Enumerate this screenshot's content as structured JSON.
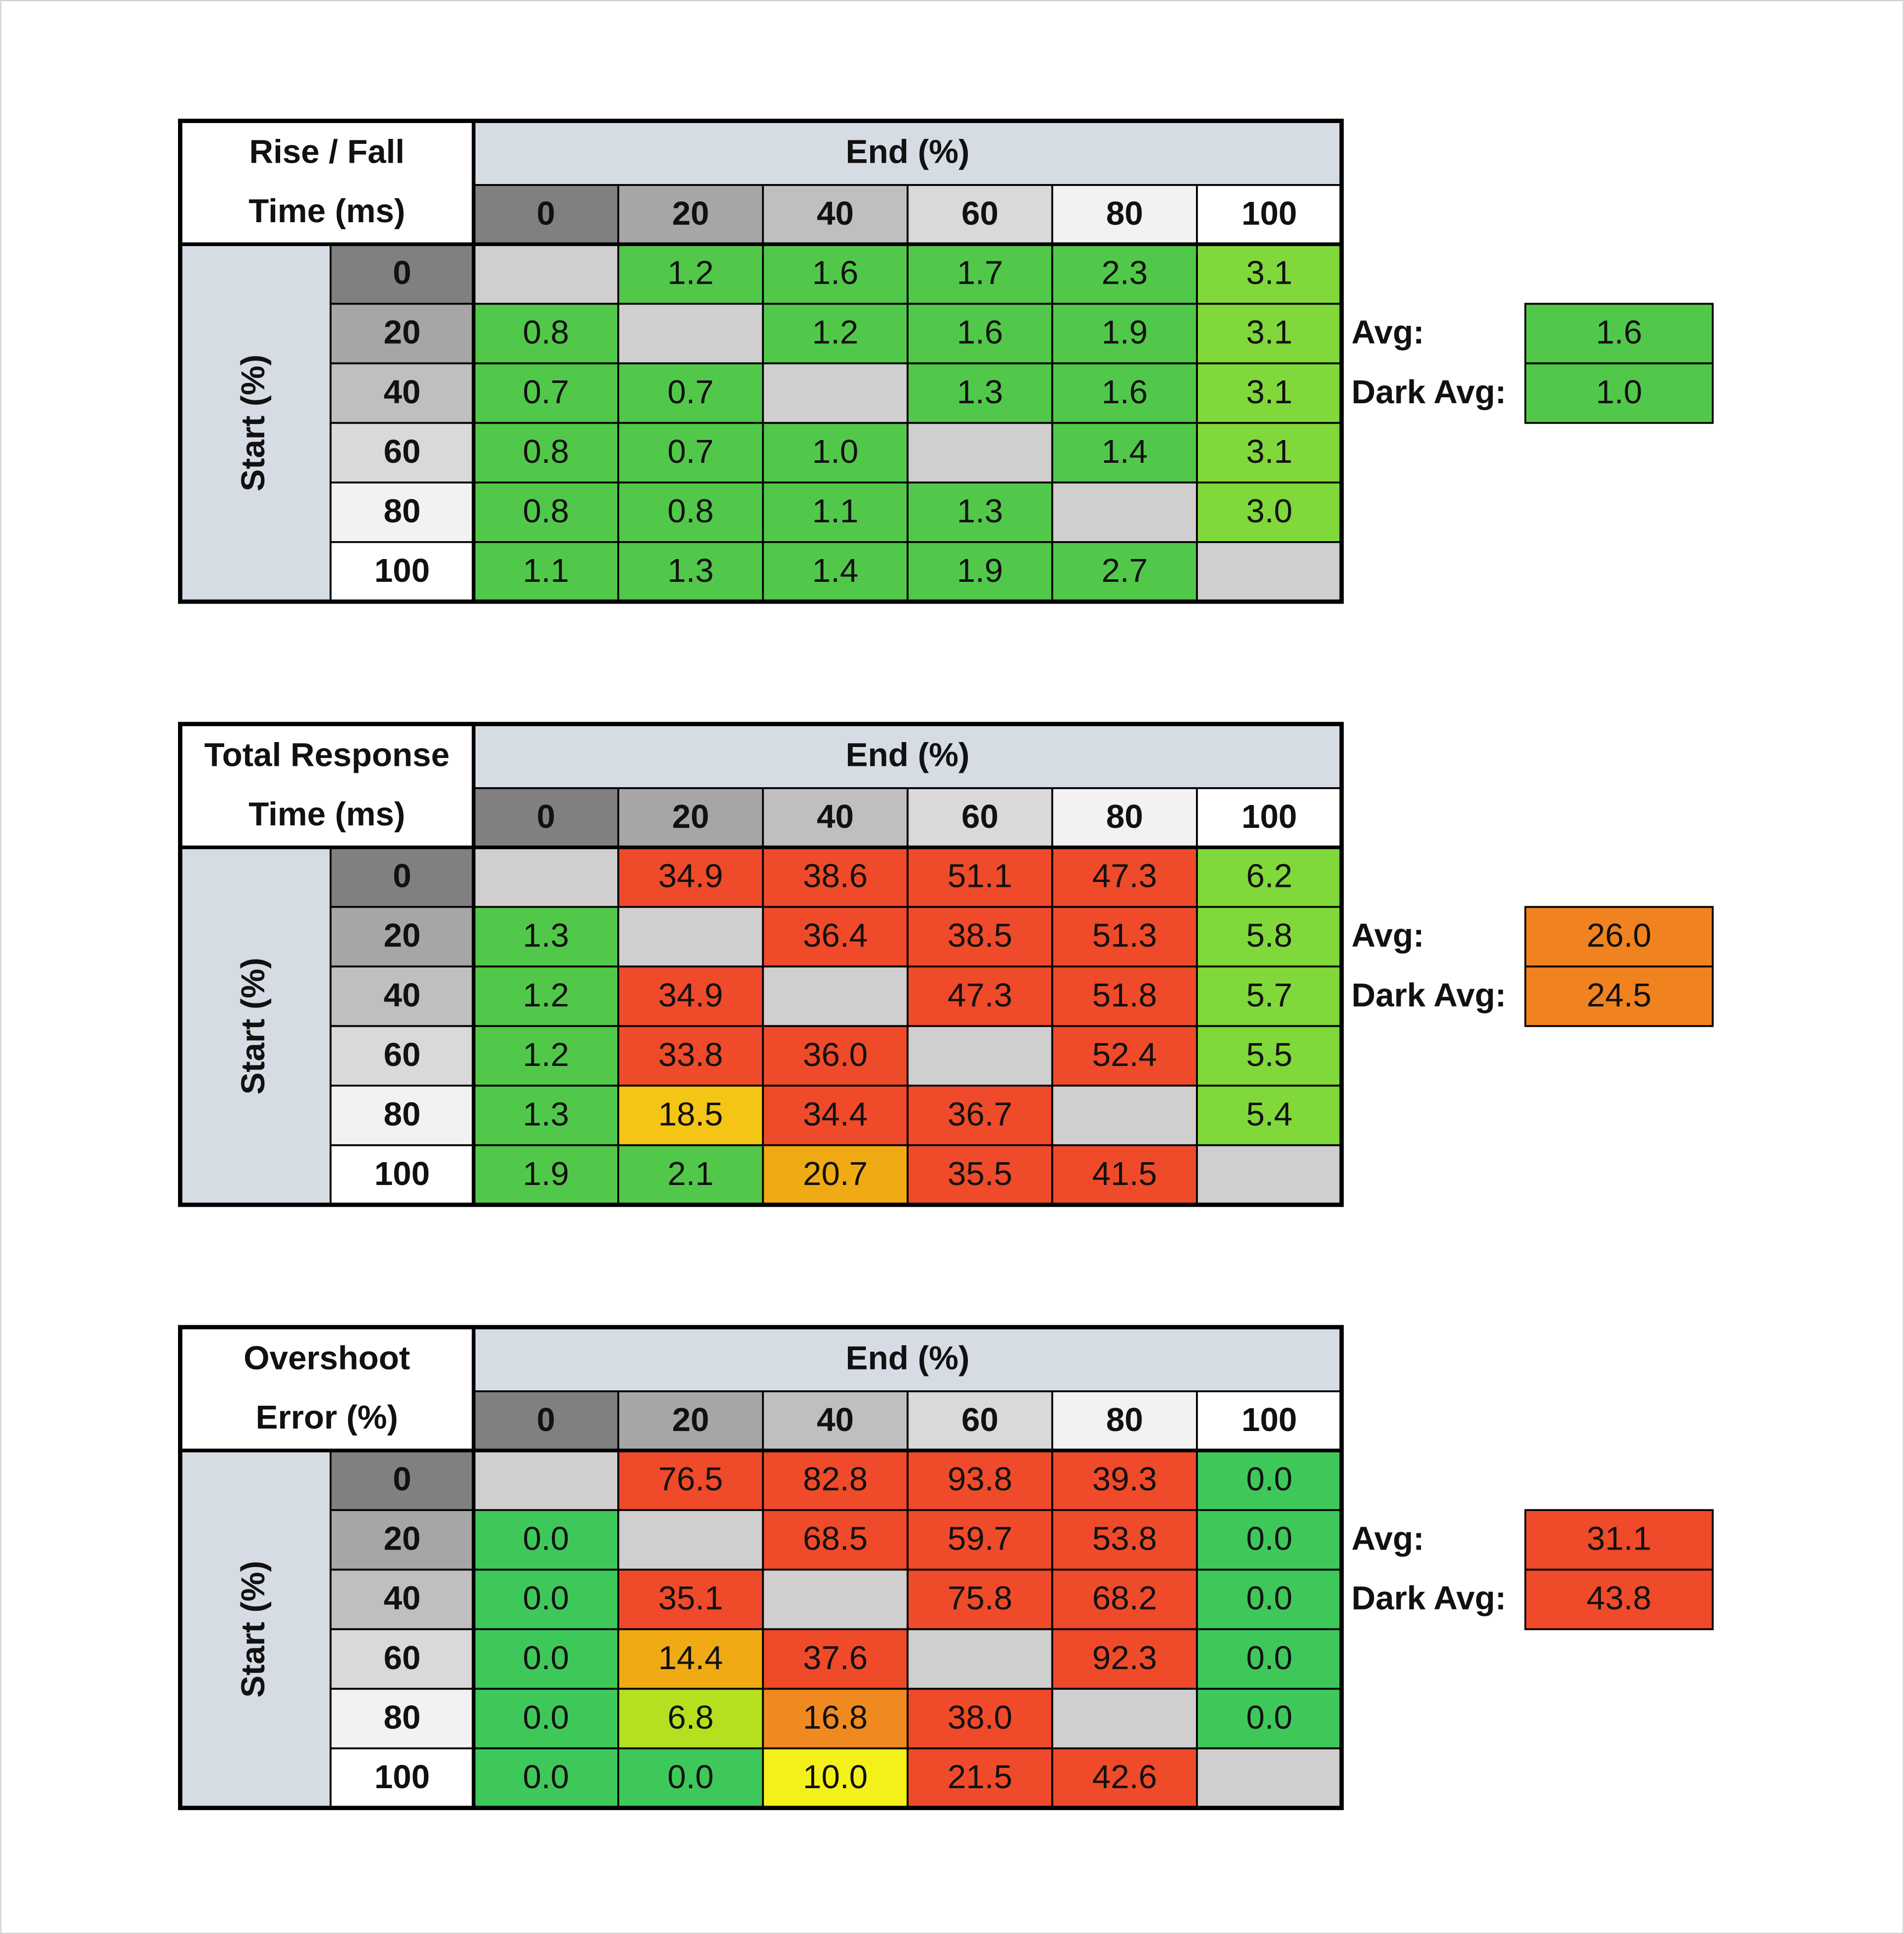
{
  "tables": [
    {
      "title": [
        "Rise / Fall",
        "Time (ms)"
      ],
      "end_label": "End (%)",
      "start_label": "Start (%)",
      "columns": [
        "0",
        "20",
        "40",
        "60",
        "80",
        "100"
      ],
      "rows": [
        "0",
        "20",
        "40",
        "60",
        "80",
        "100"
      ],
      "cells": [
        [
          null,
          "1.2",
          "1.6",
          "1.7",
          "2.3",
          "3.1"
        ],
        [
          "0.8",
          null,
          "1.2",
          "1.6",
          "1.9",
          "3.1"
        ],
        [
          "0.7",
          "0.7",
          null,
          "1.3",
          "1.6",
          "3.1"
        ],
        [
          "0.8",
          "0.7",
          "1.0",
          null,
          "1.4",
          "3.1"
        ],
        [
          "0.8",
          "0.8",
          "1.1",
          "1.3",
          null,
          "3.0"
        ],
        [
          "1.1",
          "1.3",
          "1.4",
          "1.9",
          "2.7",
          null
        ]
      ],
      "colors": [
        [
          null,
          "#52c84a",
          "#52c84a",
          "#52c84a",
          "#52c84a",
          "#80d83a"
        ],
        [
          "#52c84a",
          null,
          "#52c84a",
          "#52c84a",
          "#52c84a",
          "#80d83a"
        ],
        [
          "#52c84a",
          "#52c84a",
          null,
          "#52c84a",
          "#52c84a",
          "#80d83a"
        ],
        [
          "#52c84a",
          "#52c84a",
          "#52c84a",
          null,
          "#52c84a",
          "#80d83a"
        ],
        [
          "#52c84a",
          "#52c84a",
          "#52c84a",
          "#52c84a",
          null,
          "#80d83a"
        ],
        [
          "#52c84a",
          "#52c84a",
          "#52c84a",
          "#52c84a",
          "#52c84a",
          null
        ]
      ],
      "avg": {
        "label": "Avg:",
        "value": "1.6",
        "color": "#52c84a"
      },
      "dark_avg": {
        "label": "Dark Avg:",
        "value": "1.0",
        "color": "#52c84a"
      }
    },
    {
      "title": [
        "Total Response",
        "Time (ms)"
      ],
      "end_label": "End (%)",
      "start_label": "Start (%)",
      "columns": [
        "0",
        "20",
        "40",
        "60",
        "80",
        "100"
      ],
      "rows": [
        "0",
        "20",
        "40",
        "60",
        "80",
        "100"
      ],
      "cells": [
        [
          null,
          "34.9",
          "38.6",
          "51.1",
          "47.3",
          "6.2"
        ],
        [
          "1.3",
          null,
          "36.4",
          "38.5",
          "51.3",
          "5.8"
        ],
        [
          "1.2",
          "34.9",
          null,
          "47.3",
          "51.8",
          "5.7"
        ],
        [
          "1.2",
          "33.8",
          "36.0",
          null,
          "52.4",
          "5.5"
        ],
        [
          "1.3",
          "18.5",
          "34.4",
          "36.7",
          null,
          "5.4"
        ],
        [
          "1.9",
          "2.1",
          "20.7",
          "35.5",
          "41.5",
          null
        ]
      ],
      "colors": [
        [
          null,
          "#ef4a2a",
          "#ef4a2a",
          "#ef4a2a",
          "#ef4a2a",
          "#80d83a"
        ],
        [
          "#52c84a",
          null,
          "#ef4a2a",
          "#ef4a2a",
          "#ef4a2a",
          "#80d83a"
        ],
        [
          "#52c84a",
          "#ef4a2a",
          null,
          "#ef4a2a",
          "#ef4a2a",
          "#80d83a"
        ],
        [
          "#52c84a",
          "#ef4a2a",
          "#ef4a2a",
          null,
          "#ef4a2a",
          "#80d83a"
        ],
        [
          "#52c84a",
          "#f4c514",
          "#ef4a2a",
          "#ef4a2a",
          null,
          "#80d83a"
        ],
        [
          "#52c84a",
          "#52c84a",
          "#f0aa14",
          "#ef4a2a",
          "#ef4a2a",
          null
        ]
      ],
      "avg": {
        "label": "Avg:",
        "value": "26.0",
        "color": "#f08220"
      },
      "dark_avg": {
        "label": "Dark Avg:",
        "value": "24.5",
        "color": "#f08220"
      }
    },
    {
      "title": [
        "Overshoot",
        "Error (%)"
      ],
      "end_label": "End (%)",
      "start_label": "Start (%)",
      "columns": [
        "0",
        "20",
        "40",
        "60",
        "80",
        "100"
      ],
      "rows": [
        "0",
        "20",
        "40",
        "60",
        "80",
        "100"
      ],
      "cells": [
        [
          null,
          "76.5",
          "82.8",
          "93.8",
          "39.3",
          "0.0"
        ],
        [
          "0.0",
          null,
          "68.5",
          "59.7",
          "53.8",
          "0.0"
        ],
        [
          "0.0",
          "35.1",
          null,
          "75.8",
          "68.2",
          "0.0"
        ],
        [
          "0.0",
          "14.4",
          "37.6",
          null,
          "92.3",
          "0.0"
        ],
        [
          "0.0",
          "6.8",
          "16.8",
          "38.0",
          null,
          "0.0"
        ],
        [
          "0.0",
          "0.0",
          "10.0",
          "21.5",
          "42.6",
          null
        ]
      ],
      "colors": [
        [
          null,
          "#ef4a2a",
          "#ef4a2a",
          "#ef4a2a",
          "#ef4a2a",
          "#3ec85a"
        ],
        [
          "#3ec85a",
          null,
          "#ef4a2a",
          "#ef4a2a",
          "#ef4a2a",
          "#3ec85a"
        ],
        [
          "#3ec85a",
          "#ef4a2a",
          null,
          "#ef4a2a",
          "#ef4a2a",
          "#3ec85a"
        ],
        [
          "#3ec85a",
          "#f0aa14",
          "#ef4a2a",
          null,
          "#ef4a2a",
          "#3ec85a"
        ],
        [
          "#3ec85a",
          "#b5e020",
          "#f08a20",
          "#ef4a2a",
          null,
          "#3ec85a"
        ],
        [
          "#3ec85a",
          "#3ec85a",
          "#f4f01a",
          "#ef4a2a",
          "#ef4a2a",
          null
        ]
      ],
      "avg": {
        "label": "Avg:",
        "value": "31.1",
        "color": "#ef4a2a"
      },
      "dark_avg": {
        "label": "Dark Avg:",
        "value": "43.8",
        "color": "#ef4a2a"
      }
    }
  ]
}
